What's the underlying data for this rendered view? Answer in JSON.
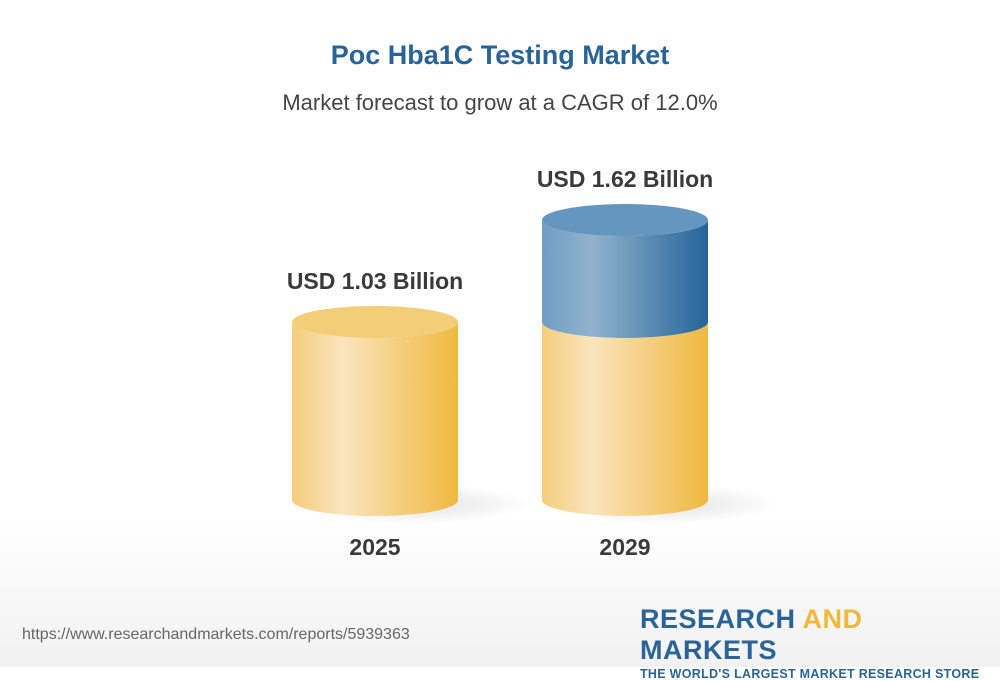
{
  "header": {
    "title": "Poc Hba1C Testing Market",
    "subtitle": "Market forecast to grow at a CAGR of 12.0%"
  },
  "chart_data": {
    "type": "bar",
    "style": "3d-cylinder",
    "categories": [
      "2025",
      "2029"
    ],
    "values": [
      1.03,
      1.62
    ],
    "data_labels": [
      "USD 1.03 Billion",
      "USD 1.62 Billion"
    ],
    "unit": "USD Billion",
    "cagr": "12.0%",
    "colors": {
      "base": "#f0b83d",
      "growth": "#2a6496"
    }
  },
  "footer": {
    "url": "https://www.researchandmarkets.com/reports/5939363",
    "logo_part1": "RESEARCH ",
    "logo_part2": "AND",
    "logo_part3": " MARKETS",
    "tagline": "THE WORLD'S LARGEST MARKET RESEARCH STORE"
  }
}
